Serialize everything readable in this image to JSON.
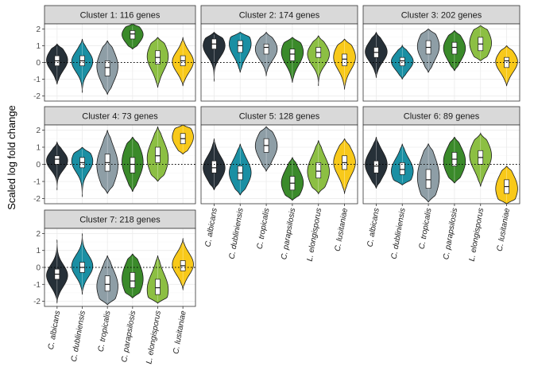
{
  "chart_data": {
    "type": "violin",
    "ylabel": "Scaled log fold change",
    "xlabel": "",
    "ylim": [
      -2.3,
      2.3
    ],
    "yticks": [
      -2,
      -1,
      0,
      1,
      2
    ],
    "reference_line": 0,
    "categories": [
      "C. albicans",
      "C. dubliniensis",
      "C. tropicalis",
      "C. parapsilosis",
      "L. elongisporus",
      "C. lusitaniae"
    ],
    "colors": [
      "#263038",
      "#1a8fa3",
      "#8e9ea6",
      "#3a8a2a",
      "#8cbf43",
      "#f8c91a"
    ],
    "panels": [
      {
        "title": "Cluster 1: 116 genes",
        "violins": [
          {
            "min": -1.3,
            "max": 1.1,
            "q1": -0.2,
            "median": 0.1,
            "q3": 0.4
          },
          {
            "min": -1.8,
            "max": 1.4,
            "q1": -0.2,
            "median": 0.1,
            "q3": 0.4
          },
          {
            "min": -1.9,
            "max": 1.3,
            "q1": -0.8,
            "median": -0.3,
            "q3": 0.1
          },
          {
            "min": 0.8,
            "max": 2.3,
            "q1": 1.4,
            "median": 1.7,
            "q3": 1.9
          },
          {
            "min": -1.5,
            "max": 1.5,
            "q1": -0.1,
            "median": 0.3,
            "q3": 0.7
          },
          {
            "min": -1.4,
            "max": 1.5,
            "q1": -0.2,
            "median": 0.1,
            "q3": 0.4
          }
        ]
      },
      {
        "title": "Cluster 2: 174 genes",
        "violins": [
          {
            "min": -1.1,
            "max": 1.8,
            "q1": 0.8,
            "median": 1.1,
            "q3": 1.4
          },
          {
            "min": -0.6,
            "max": 1.8,
            "q1": 0.6,
            "median": 1.0,
            "q3": 1.3
          },
          {
            "min": -0.8,
            "max": 1.8,
            "q1": 0.5,
            "median": 0.9,
            "q3": 1.1
          },
          {
            "min": -1.2,
            "max": 1.5,
            "q1": 0.1,
            "median": 0.5,
            "q3": 0.8
          },
          {
            "min": -1.4,
            "max": 1.6,
            "q1": 0.3,
            "median": 0.6,
            "q3": 0.9
          },
          {
            "min": -1.6,
            "max": 1.4,
            "q1": -0.2,
            "median": 0.2,
            "q3": 0.5
          }
        ]
      },
      {
        "title": "Cluster 3: 202 genes",
        "violins": [
          {
            "min": -0.9,
            "max": 1.8,
            "q1": 0.3,
            "median": 0.6,
            "q3": 0.9
          },
          {
            "min": -1.0,
            "max": 1.0,
            "q1": -0.2,
            "median": 0.1,
            "q3": 0.3
          },
          {
            "min": -0.6,
            "max": 2.0,
            "q1": 0.5,
            "median": 0.9,
            "q3": 1.3
          },
          {
            "min": -0.5,
            "max": 1.9,
            "q1": 0.5,
            "median": 0.9,
            "q3": 1.2
          },
          {
            "min": 0.1,
            "max": 2.2,
            "q1": 0.7,
            "median": 1.1,
            "q3": 1.5
          },
          {
            "min": -1.4,
            "max": 1.0,
            "q1": -0.3,
            "median": 0.1,
            "q3": 0.3
          }
        ]
      },
      {
        "title": "Cluster 4: 73 genes",
        "violins": [
          {
            "min": -1.5,
            "max": 1.3,
            "q1": 0.0,
            "median": 0.3,
            "q3": 0.5
          },
          {
            "min": -1.9,
            "max": 1.0,
            "q1": -0.2,
            "median": 0.1,
            "q3": 0.4
          },
          {
            "min": -1.7,
            "max": 2.0,
            "q1": -0.4,
            "median": 0.1,
            "q3": 0.6
          },
          {
            "min": -1.6,
            "max": 1.6,
            "q1": -0.5,
            "median": 0.0,
            "q3": 0.4
          },
          {
            "min": -1.0,
            "max": 2.2,
            "q1": 0.1,
            "median": 0.5,
            "q3": 1.0
          },
          {
            "min": 0.6,
            "max": 2.3,
            "q1": 1.2,
            "median": 1.5,
            "q3": 1.8
          }
        ]
      },
      {
        "title": "Cluster 5: 128 genes",
        "violins": [
          {
            "min": -1.5,
            "max": 1.5,
            "q1": -0.5,
            "median": -0.2,
            "q3": 0.2
          },
          {
            "min": -1.8,
            "max": 1.2,
            "q1": -0.9,
            "median": -0.5,
            "q3": -0.1
          },
          {
            "min": -0.4,
            "max": 2.2,
            "q1": 0.7,
            "median": 1.1,
            "q3": 1.5
          },
          {
            "min": -2.1,
            "max": 0.4,
            "q1": -1.5,
            "median": -1.1,
            "q3": -0.7
          },
          {
            "min": -1.7,
            "max": 1.4,
            "q1": -0.8,
            "median": -0.4,
            "q3": 0.1
          },
          {
            "min": -1.7,
            "max": 1.5,
            "q1": -0.3,
            "median": 0.1,
            "q3": 0.5
          }
        ]
      },
      {
        "title": "Cluster 6: 89 genes",
        "violins": [
          {
            "min": -1.4,
            "max": 1.6,
            "q1": -0.5,
            "median": -0.1,
            "q3": 0.2
          },
          {
            "min": -1.2,
            "max": 1.2,
            "q1": -0.6,
            "median": -0.3,
            "q3": 0.1
          },
          {
            "min": -2.2,
            "max": 1.2,
            "q1": -1.4,
            "median": -0.9,
            "q3": -0.3
          },
          {
            "min": -1.1,
            "max": 1.6,
            "q1": -0.1,
            "median": 0.3,
            "q3": 0.7
          },
          {
            "min": -1.3,
            "max": 1.8,
            "q1": 0.0,
            "median": 0.4,
            "q3": 0.8
          },
          {
            "min": -2.3,
            "max": -0.1,
            "q1": -1.7,
            "median": -1.3,
            "q3": -0.9
          }
        ]
      },
      {
        "title": "Cluster 7: 218 genes",
        "violins": [
          {
            "min": -2.1,
            "max": 1.6,
            "q1": -0.7,
            "median": -0.4,
            "q3": -0.1
          },
          {
            "min": -1.6,
            "max": 2.0,
            "q1": -0.3,
            "median": 0.0,
            "q3": 0.3
          },
          {
            "min": -2.2,
            "max": 0.7,
            "q1": -1.4,
            "median": -1.0,
            "q3": -0.5
          },
          {
            "min": -1.8,
            "max": 0.8,
            "q1": -1.2,
            "median": -0.8,
            "q3": -0.3
          },
          {
            "min": -2.1,
            "max": 0.7,
            "q1": -1.6,
            "median": -1.2,
            "q3": -0.7
          },
          {
            "min": -1.3,
            "max": 1.7,
            "q1": -0.2,
            "median": 0.1,
            "q3": 0.4
          }
        ]
      }
    ]
  }
}
